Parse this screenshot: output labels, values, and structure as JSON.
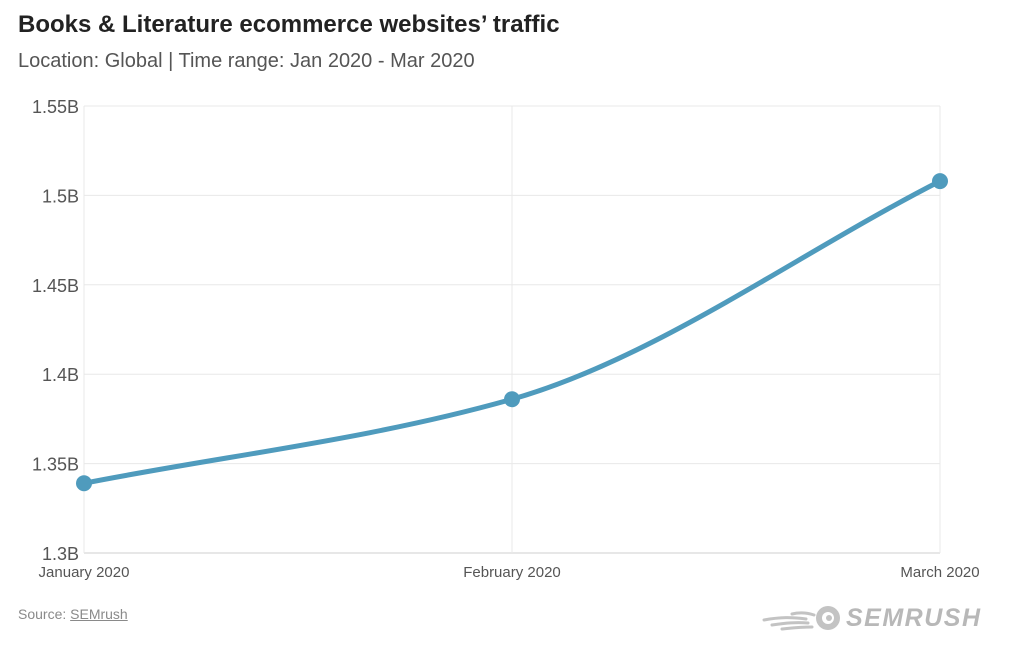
{
  "header": {
    "title": "Books & Literature ecommerce websites’ traffic",
    "subtitle": "Location: Global | Time range: Jan 2020 - Mar 2020"
  },
  "chart_data": {
    "type": "line",
    "categories": [
      "January 2020",
      "February 2020",
      "March 2020"
    ],
    "series": [
      {
        "values": [
          1.339,
          1.386,
          1.508
        ]
      }
    ],
    "yticks": [
      {
        "value": 1.3,
        "label": "1.3B"
      },
      {
        "value": 1.35,
        "label": "1.35B"
      },
      {
        "value": 1.4,
        "label": "1.4B"
      },
      {
        "value": 1.45,
        "label": "1.45B"
      },
      {
        "value": 1.5,
        "label": "1.5B"
      },
      {
        "value": 1.55,
        "label": "1.55B"
      }
    ],
    "ylim": [
      1.3,
      1.55
    ],
    "xlabel": "",
    "ylabel": "",
    "grid": true,
    "line_color": "#4f9bbd"
  },
  "footer": {
    "source_prefix": "Source: ",
    "source_link": "SEMrush",
    "brand": "SEMRUSH"
  }
}
